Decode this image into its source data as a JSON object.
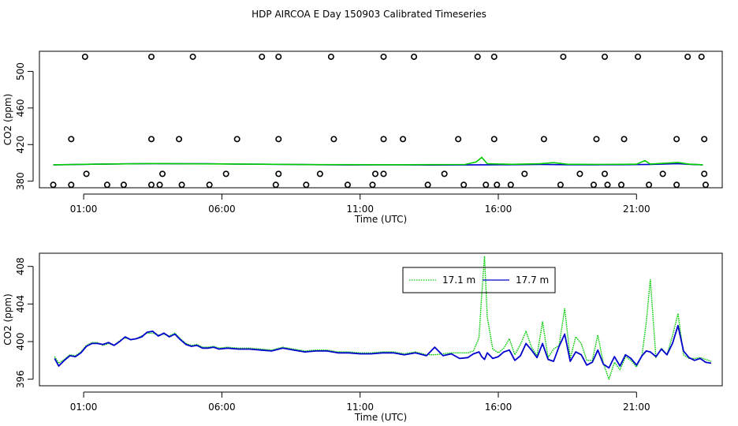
{
  "figure": {
    "title": "HDP AIRCOA E  Day 150903  Calibrated Timeseries"
  },
  "chart_data": [
    {
      "type": "scatter",
      "title": "HDP AIRCOA E  Day 150903  Calibrated Timeseries",
      "xlabel": "Time (UTC)",
      "ylabel": "CO2 (ppm)",
      "xlim": [
        -0.6,
        24.1
      ],
      "ylim": [
        372.8,
        522
      ],
      "x_ticks": [
        1,
        6,
        11,
        16,
        21
      ],
      "x_tick_labels": [
        "01:00",
        "06:00",
        "11:00",
        "16:00",
        "21:00"
      ],
      "y_ticks": [
        380,
        420,
        460,
        500
      ],
      "y_tick_labels": [
        "380",
        "420",
        "460",
        "500"
      ],
      "grid": false,
      "series": [
        {
          "color": "#0000cc",
          "style": "line",
          "points": [
            [
              -0.1,
              397.9
            ],
            [
              0.5,
              398.1
            ],
            [
              1.5,
              398.6
            ],
            [
              2.5,
              398.9
            ],
            [
              3.5,
              399.2
            ],
            [
              4.5,
              399.0
            ],
            [
              5.5,
              399.1
            ],
            [
              6.5,
              398.7
            ],
            [
              7.5,
              398.5
            ],
            [
              8.5,
              398.2
            ],
            [
              9.5,
              398.0
            ],
            [
              10.5,
              397.7
            ],
            [
              11.5,
              397.8
            ],
            [
              12.5,
              397.9
            ],
            [
              13.5,
              397.6
            ],
            [
              14.5,
              397.7
            ],
            [
              15.5,
              397.9
            ],
            [
              16.5,
              398.0
            ],
            [
              17.5,
              398.2
            ],
            [
              18.5,
              398.0
            ],
            [
              19.5,
              397.9
            ],
            [
              20.5,
              398.0
            ],
            [
              21.5,
              398.3
            ],
            [
              22.5,
              399.2
            ],
            [
              22.9,
              398.4
            ],
            [
              23.4,
              397.8
            ]
          ]
        },
        {
          "color": "#00cc00",
          "style": "line",
          "points": [
            [
              -0.1,
              397.9
            ],
            [
              1.5,
              398.6
            ],
            [
              3.5,
              399.3
            ],
            [
              6.5,
              398.8
            ],
            [
              9.5,
              398.1
            ],
            [
              12.5,
              398.0
            ],
            [
              14.8,
              398.2
            ],
            [
              15.2,
              401.0
            ],
            [
              15.4,
              406.0
            ],
            [
              15.6,
              399.0
            ],
            [
              16.5,
              398.4
            ],
            [
              17.5,
              399.0
            ],
            [
              18.0,
              400.2
            ],
            [
              18.5,
              398.5
            ],
            [
              19.5,
              398.3
            ],
            [
              20.5,
              398.4
            ],
            [
              21.0,
              398.6
            ],
            [
              21.3,
              402.5
            ],
            [
              21.5,
              398.8
            ],
            [
              22.5,
              400.5
            ],
            [
              22.9,
              398.6
            ],
            [
              23.4,
              397.9
            ]
          ]
        },
        {
          "color": "#000000",
          "style": "markers",
          "marker": "open-circle",
          "points": [
            [
              -0.1,
              376
            ],
            [
              1.1,
              388
            ],
            [
              0.55,
              376
            ],
            [
              1.85,
              376
            ],
            [
              2.45,
              376
            ],
            [
              3.45,
              376
            ],
            [
              3.75,
              376
            ],
            [
              3.85,
              388
            ],
            [
              4.55,
              376
            ],
            [
              5.55,
              376
            ],
            [
              6.15,
              388
            ],
            [
              7.95,
              376
            ],
            [
              8.05,
              388
            ],
            [
              9.05,
              376
            ],
            [
              9.55,
              388
            ],
            [
              10.55,
              376
            ],
            [
              11.45,
              376
            ],
            [
              11.55,
              388
            ],
            [
              11.85,
              388
            ],
            [
              12.55,
              426
            ],
            [
              13.45,
              376
            ],
            [
              14.05,
              388
            ],
            [
              14.75,
              376
            ],
            [
              15.55,
              376
            ],
            [
              15.95,
              376
            ],
            [
              16.45,
              376
            ],
            [
              16.95,
              388
            ],
            [
              18.25,
              376
            ],
            [
              18.95,
              388
            ],
            [
              19.45,
              376
            ],
            [
              19.85,
              388
            ],
            [
              19.95,
              376
            ],
            [
              20.45,
              376
            ],
            [
              21.45,
              376
            ],
            [
              21.95,
              388
            ],
            [
              22.45,
              376
            ],
            [
              23.45,
              388
            ],
            [
              23.5,
              376
            ],
            [
              0.55,
              426
            ],
            [
              3.45,
              426
            ],
            [
              4.45,
              426
            ],
            [
              6.55,
              426
            ],
            [
              8.05,
              426
            ],
            [
              10.05,
              426
            ],
            [
              11.85,
              426
            ],
            [
              14.55,
              426
            ],
            [
              15.85,
              426
            ],
            [
              17.65,
              426
            ],
            [
              19.55,
              426
            ],
            [
              20.55,
              426
            ],
            [
              22.45,
              426
            ],
            [
              23.45,
              426
            ],
            [
              1.05,
              516
            ],
            [
              3.45,
              516
            ],
            [
              4.95,
              516
            ],
            [
              7.45,
              516
            ],
            [
              8.05,
              516
            ],
            [
              9.95,
              516
            ],
            [
              11.85,
              516
            ],
            [
              12.95,
              516
            ],
            [
              15.25,
              516
            ],
            [
              15.85,
              516
            ],
            [
              18.35,
              516
            ],
            [
              19.85,
              516
            ],
            [
              21.05,
              516
            ],
            [
              22.85,
              516
            ],
            [
              23.35,
              516
            ]
          ]
        }
      ]
    },
    {
      "type": "line",
      "xlabel": "Time (UTC)",
      "ylabel": "CO2 (ppm)",
      "xlim": [
        -0.6,
        24.1
      ],
      "ylim": [
        395.3,
        409.4
      ],
      "x_ticks": [
        1,
        6,
        11,
        16,
        21
      ],
      "x_tick_labels": [
        "01:00",
        "06:00",
        "11:00",
        "16:00",
        "21:00"
      ],
      "y_ticks": [
        396,
        400,
        404,
        408
      ],
      "y_tick_labels": [
        "396",
        "400",
        "404",
        "408"
      ],
      "grid": false,
      "legend": "top-center",
      "series": [
        {
          "name": "17.1 m",
          "color": "#00cc00",
          "line_style": "dotted",
          "x": [
            -0.05,
            0.1,
            0.3,
            0.5,
            0.7,
            0.9,
            1.1,
            1.3,
            1.5,
            1.7,
            1.9,
            2.1,
            2.3,
            2.5,
            2.7,
            2.9,
            3.1,
            3.3,
            3.5,
            3.7,
            3.9,
            4.1,
            4.3,
            4.5,
            4.7,
            4.9,
            5.1,
            5.3,
            5.5,
            5.7,
            5.9,
            6.2,
            6.6,
            7.0,
            7.4,
            7.8,
            8.2,
            8.6,
            9.0,
            9.4,
            9.8,
            10.2,
            10.6,
            11.0,
            11.4,
            11.8,
            12.2,
            12.6,
            13.0,
            13.4,
            13.7,
            14.0,
            14.3,
            14.6,
            14.9,
            15.1,
            15.3,
            15.4,
            15.5,
            15.6,
            15.8,
            16.0,
            16.2,
            16.4,
            16.6,
            16.8,
            17.0,
            17.2,
            17.4,
            17.6,
            17.8,
            18.0,
            18.2,
            18.4,
            18.6,
            18.8,
            19.0,
            19.2,
            19.4,
            19.6,
            19.8,
            20.0,
            20.2,
            20.4,
            20.6,
            20.8,
            21.0,
            21.2,
            21.35,
            21.5,
            21.7,
            21.9,
            22.1,
            22.3,
            22.5,
            22.7,
            22.9,
            23.1,
            23.3,
            23.5,
            23.7
          ],
          "values": [
            398.4,
            397.7,
            398.1,
            398.6,
            398.5,
            398.9,
            399.6,
            399.9,
            399.9,
            399.6,
            399.8,
            399.6,
            400.1,
            400.4,
            400.2,
            400.3,
            400.6,
            400.9,
            400.9,
            400.7,
            400.8,
            400.6,
            400.9,
            400.3,
            399.8,
            399.6,
            399.7,
            399.4,
            399.4,
            399.5,
            399.3,
            399.4,
            399.3,
            399.3,
            399.2,
            399.1,
            399.4,
            399.2,
            399.0,
            399.1,
            399.1,
            398.9,
            398.9,
            398.8,
            398.8,
            398.9,
            398.9,
            398.7,
            398.9,
            398.6,
            398.6,
            398.7,
            398.8,
            398.8,
            398.8,
            399.0,
            400.4,
            405.0,
            409.1,
            402.6,
            399.2,
            398.8,
            399.3,
            400.3,
            398.6,
            399.7,
            401.1,
            399.4,
            398.5,
            402.1,
            398.3,
            399.2,
            399.6,
            403.5,
            398.2,
            400.5,
            399.8,
            398.0,
            398.0,
            400.7,
            397.7,
            396.0,
            397.8,
            397.0,
            398.4,
            398.0,
            397.3,
            398.6,
            402.0,
            406.6,
            398.3,
            399.3,
            398.6,
            400.6,
            403.0,
            398.6,
            398.2,
            398.2,
            398.3,
            398.1,
            397.9
          ]
        },
        {
          "name": "17.7 m",
          "color": "#0000cc",
          "line_style": "solid",
          "x": [
            -0.05,
            0.1,
            0.3,
            0.5,
            0.7,
            0.9,
            1.1,
            1.3,
            1.5,
            1.7,
            1.9,
            2.1,
            2.3,
            2.5,
            2.7,
            2.9,
            3.1,
            3.3,
            3.5,
            3.7,
            3.9,
            4.1,
            4.3,
            4.5,
            4.7,
            4.9,
            5.1,
            5.3,
            5.5,
            5.7,
            5.9,
            6.2,
            6.6,
            7.0,
            7.4,
            7.8,
            8.2,
            8.6,
            9.0,
            9.4,
            9.8,
            10.2,
            10.6,
            11.0,
            11.4,
            11.8,
            12.2,
            12.6,
            13.0,
            13.4,
            13.7,
            14.0,
            14.3,
            14.6,
            14.9,
            15.1,
            15.3,
            15.4,
            15.5,
            15.6,
            15.8,
            16.0,
            16.2,
            16.4,
            16.6,
            16.8,
            17.0,
            17.2,
            17.4,
            17.6,
            17.8,
            18.0,
            18.2,
            18.4,
            18.6,
            18.8,
            19.0,
            19.2,
            19.4,
            19.6,
            19.8,
            20.0,
            20.2,
            20.4,
            20.6,
            20.8,
            21.0,
            21.2,
            21.35,
            21.5,
            21.7,
            21.9,
            22.1,
            22.3,
            22.5,
            22.7,
            22.9,
            23.1,
            23.3,
            23.5,
            23.7
          ],
          "values": [
            398.2,
            397.4,
            398.0,
            398.5,
            398.4,
            398.8,
            399.5,
            399.8,
            399.8,
            399.7,
            399.9,
            399.6,
            400.0,
            400.5,
            400.2,
            400.3,
            400.5,
            401.0,
            401.1,
            400.6,
            400.9,
            400.5,
            400.8,
            400.2,
            399.7,
            399.5,
            399.6,
            399.3,
            399.3,
            399.4,
            399.2,
            399.3,
            399.2,
            399.2,
            399.1,
            399.0,
            399.3,
            399.1,
            398.9,
            399.0,
            399.0,
            398.8,
            398.8,
            398.7,
            398.7,
            398.8,
            398.8,
            398.6,
            398.8,
            398.5,
            399.4,
            398.5,
            398.7,
            398.2,
            398.3,
            398.7,
            398.9,
            398.4,
            398.1,
            398.8,
            398.2,
            398.4,
            398.9,
            399.1,
            398.0,
            398.5,
            399.8,
            399.1,
            398.3,
            399.8,
            398.1,
            397.9,
            399.5,
            400.8,
            397.9,
            398.9,
            398.6,
            397.5,
            397.8,
            399.1,
            397.6,
            397.2,
            398.4,
            397.4,
            398.6,
            398.2,
            397.5,
            398.5,
            399.0,
            398.9,
            398.4,
            399.2,
            398.6,
            399.8,
            401.7,
            399.0,
            398.3,
            398.0,
            398.2,
            397.8,
            397.7
          ]
        }
      ]
    }
  ]
}
